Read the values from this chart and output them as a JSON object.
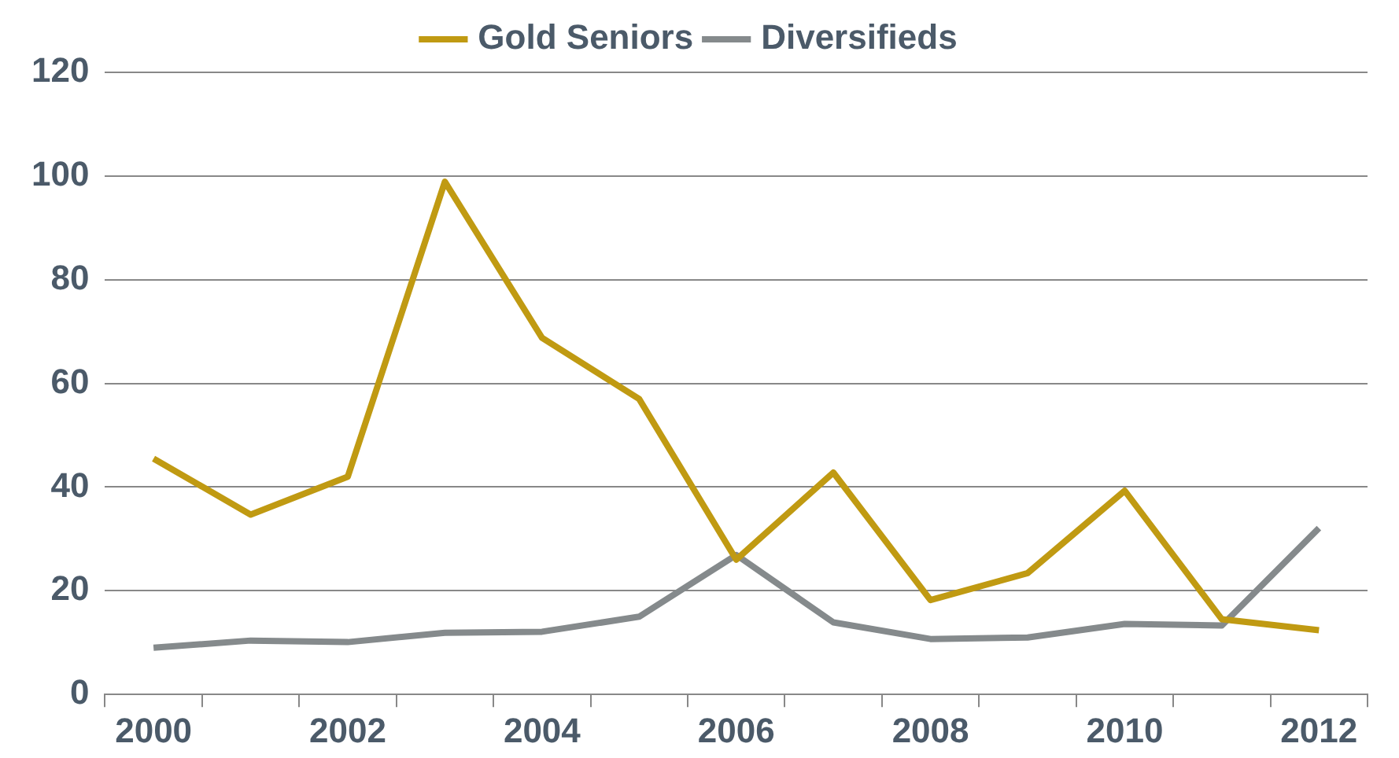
{
  "chart_data": {
    "type": "line",
    "categories": [
      "2000",
      null,
      "2002",
      null,
      "2004",
      null,
      "2006",
      null,
      "2008",
      null,
      "2010",
      null,
      "2012"
    ],
    "series": [
      {
        "name": "Gold Seniors",
        "color": "#c09a12",
        "values": [
          45.5,
          34.7,
          42,
          98.9,
          68.8,
          57,
          26,
          42.8,
          18.2,
          23.4,
          39.3,
          14.5,
          12.4
        ]
      },
      {
        "name": "Diversifieds",
        "color": "#858a8c",
        "values": [
          9,
          10.4,
          10.1,
          11.9,
          12.1,
          15,
          26.9,
          13.9,
          10.7,
          11,
          13.6,
          13.3,
          32.1
        ]
      }
    ],
    "ylim": [
      0,
      120
    ],
    "yticks": [
      0,
      20,
      40,
      60,
      80,
      100,
      120
    ],
    "grid": "y",
    "legend": "top",
    "marker": "none",
    "line_style": "solid"
  }
}
